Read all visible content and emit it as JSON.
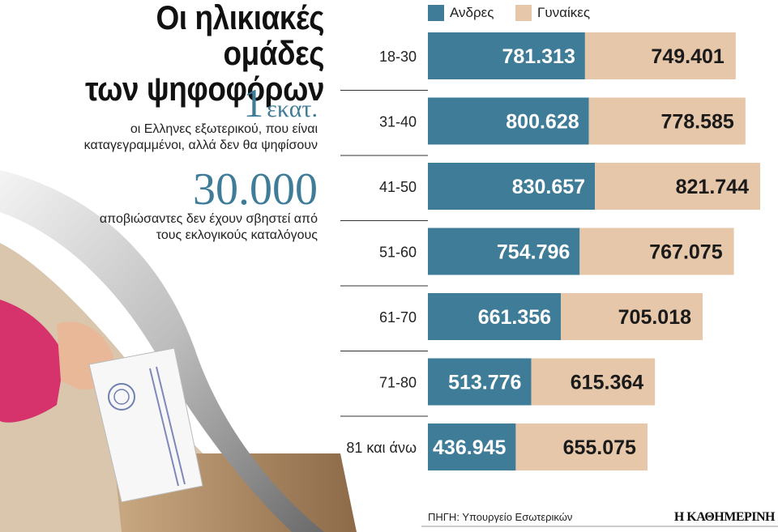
{
  "headline": {
    "line1": "Οι ηλικιακές ομάδες",
    "line2": "των ψηφοφόρων"
  },
  "facts": [
    {
      "number": "1",
      "unit": "εκατ.",
      "text_line1": "οι Ελληνες εξωτερικού, που είναι",
      "text_line2": "καταγεγραμμένοι, αλλά δεν θα ψηφίσουν"
    },
    {
      "number": "30.000",
      "unit": "",
      "text_line1": "αποβιώσαντες δεν έχουν σβηστεί από",
      "text_line2": "τους εκλογικούς καταλόγους"
    }
  ],
  "colors": {
    "men": "#3f7c97",
    "women": "#e6c7aa",
    "men_text": "#ffffff",
    "women_text": "#1a1a1a"
  },
  "source": "ΠΗΓΗ: Υπουργείο Εσωτερικών",
  "brand": "Η ΚΑΘΗΜΕΡΙΝΗ",
  "chart_data": {
    "type": "bar",
    "orientation": "horizontal",
    "stacked": true,
    "categories": [
      "18-30",
      "31-40",
      "41-50",
      "51-60",
      "61-70",
      "71-80",
      "81 και άνω"
    ],
    "series": [
      {
        "name": "Ανδρες",
        "values": [
          781313,
          800628,
          830657,
          754796,
          661356,
          513776,
          436945
        ],
        "labels": [
          "781.313",
          "800.628",
          "830.657",
          "754.796",
          "661.356",
          "513.776",
          "436.945"
        ]
      },
      {
        "name": "Γυναίκες",
        "values": [
          749401,
          778585,
          821744,
          767075,
          705018,
          615364,
          655075
        ],
        "labels": [
          "749.401",
          "778.585",
          "821.744",
          "767.075",
          "705.018",
          "615.364",
          "655.075"
        ]
      }
    ],
    "legend_position": "top"
  }
}
